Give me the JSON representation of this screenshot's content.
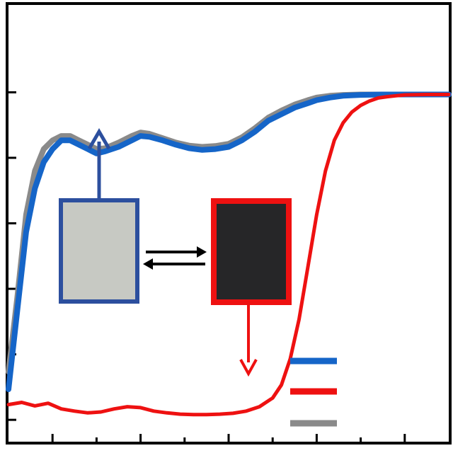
{
  "chart_data": {
    "type": "line",
    "title": "",
    "xlabel": "",
    "ylabel": "",
    "x_range": [
      0,
      10
    ],
    "y_range": [
      0,
      1
    ],
    "grid": false,
    "legend": {
      "placement": "bottom-right",
      "shows_text": false
    },
    "x_ticks": {
      "major": [
        1,
        3,
        5,
        7,
        9
      ],
      "minor": [
        2,
        4,
        6,
        8
      ]
    },
    "y_ticks": [
      0.05,
      0.2,
      0.35,
      0.5,
      0.65,
      0.8
    ],
    "series": [
      {
        "color": "#1565c8",
        "x": [
          0,
          0.2,
          0.4,
          0.6,
          0.8,
          1.0,
          1.2,
          1.4,
          1.6,
          1.8,
          2.0,
          2.2,
          2.5,
          2.8,
          3.0,
          3.2,
          3.5,
          3.8,
          4.1,
          4.4,
          4.7,
          5.0,
          5.3,
          5.6,
          5.9,
          6.2,
          6.5,
          6.8,
          7.0,
          7.3,
          7.6,
          8.0,
          8.5,
          9.0,
          9.5,
          10.0
        ],
        "values": [
          0.12,
          0.3,
          0.48,
          0.58,
          0.64,
          0.67,
          0.69,
          0.69,
          0.68,
          0.67,
          0.66,
          0.665,
          0.675,
          0.69,
          0.7,
          0.698,
          0.69,
          0.68,
          0.672,
          0.668,
          0.67,
          0.675,
          0.69,
          0.71,
          0.735,
          0.75,
          0.765,
          0.775,
          0.782,
          0.788,
          0.792,
          0.794,
          0.795,
          0.795,
          0.795,
          0.795
        ]
      },
      {
        "color": "#ee1111",
        "x": [
          0,
          0.3,
          0.6,
          0.9,
          1.2,
          1.5,
          1.8,
          2.1,
          2.4,
          2.7,
          3.0,
          3.3,
          3.6,
          3.9,
          4.2,
          4.5,
          4.8,
          5.1,
          5.4,
          5.7,
          6.0,
          6.2,
          6.4,
          6.6,
          6.8,
          7.0,
          7.2,
          7.4,
          7.6,
          7.8,
          8.0,
          8.2,
          8.4,
          8.6,
          8.8,
          9.0,
          9.5,
          10.0
        ],
        "values": [
          0.085,
          0.09,
          0.082,
          0.088,
          0.075,
          0.07,
          0.066,
          0.068,
          0.075,
          0.08,
          0.078,
          0.07,
          0.066,
          0.063,
          0.062,
          0.062,
          0.063,
          0.065,
          0.07,
          0.08,
          0.1,
          0.13,
          0.19,
          0.28,
          0.4,
          0.52,
          0.62,
          0.69,
          0.73,
          0.755,
          0.77,
          0.78,
          0.787,
          0.79,
          0.792,
          0.794,
          0.795,
          0.795
        ]
      },
      {
        "color": "#8a8a8a",
        "x": [
          0,
          0.2,
          0.4,
          0.6,
          0.8,
          1.0,
          1.2,
          1.4,
          1.6,
          1.8,
          2.0,
          2.2,
          2.5,
          2.8,
          3.0,
          3.2,
          3.5,
          3.8,
          4.1,
          4.4,
          4.7,
          5.0,
          5.3,
          5.6,
          5.9,
          6.2,
          6.5,
          6.8,
          7.0,
          7.3,
          7.6,
          8.0,
          8.5,
          9.0,
          9.5,
          10.0
        ],
        "values": [
          0.16,
          0.33,
          0.52,
          0.62,
          0.67,
          0.69,
          0.7,
          0.7,
          0.69,
          0.68,
          0.67,
          0.672,
          0.685,
          0.7,
          0.708,
          0.705,
          0.695,
          0.685,
          0.678,
          0.675,
          0.677,
          0.682,
          0.697,
          0.718,
          0.742,
          0.758,
          0.772,
          0.782,
          0.788,
          0.792,
          0.794,
          0.795,
          0.795,
          0.795,
          0.795,
          0.795
        ]
      }
    ],
    "annotations": [
      {
        "type": "image-swatch",
        "depicts": "light-state-sample",
        "connects_to_series": 0
      },
      {
        "type": "image-swatch",
        "depicts": "dark-state-sample",
        "connects_to_series": 1
      },
      {
        "type": "double-arrow",
        "between": [
          "light-state-sample",
          "dark-state-sample"
        ]
      }
    ]
  }
}
